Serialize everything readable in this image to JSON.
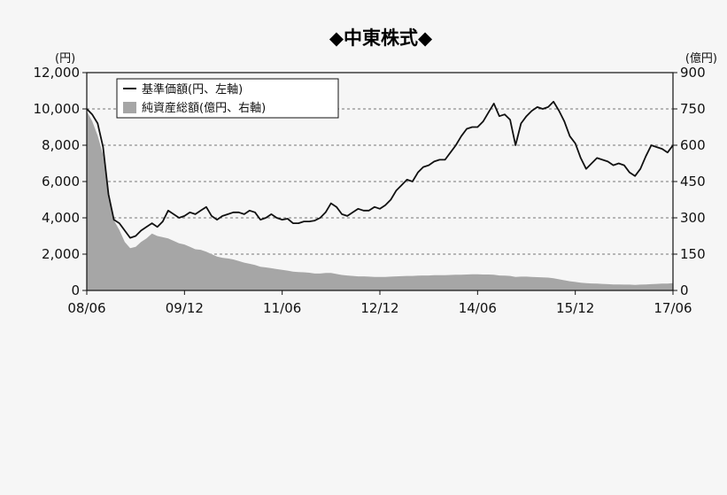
{
  "chart_data": {
    "type": "line",
    "title": "◆中東株式◆",
    "left_unit": "(円)",
    "right_unit": "(億円)",
    "x_ticks": [
      "08/06",
      "09/12",
      "11/06",
      "12/12",
      "14/06",
      "15/12",
      "17/06"
    ],
    "y_left": {
      "min": 0,
      "max": 12000,
      "ticks": [
        "0",
        "2,000",
        "4,000",
        "6,000",
        "8,000",
        "10,000",
        "12,000"
      ]
    },
    "y_right": {
      "min": 0,
      "max": 900,
      "ticks": [
        "0",
        "150",
        "300",
        "450",
        "600",
        "750",
        "900"
      ]
    },
    "grid": "horizontal-dashed",
    "legend_position": "top-left",
    "series": [
      {
        "name": "基準価額(円、左軸)",
        "axis": "left",
        "style": "line",
        "color": "#111111",
        "points": [
          [
            "2008-06",
            10000
          ],
          [
            "2008-07",
            9700
          ],
          [
            "2008-08",
            9200
          ],
          [
            "2008-09",
            7900
          ],
          [
            "2008-10",
            5300
          ],
          [
            "2008-11",
            3900
          ],
          [
            "2008-12",
            3700
          ],
          [
            "2009-01",
            3300
          ],
          [
            "2009-02",
            2900
          ],
          [
            "2009-03",
            3000
          ],
          [
            "2009-04",
            3300
          ],
          [
            "2009-05",
            3500
          ],
          [
            "2009-06",
            3700
          ],
          [
            "2009-07",
            3500
          ],
          [
            "2009-08",
            3800
          ],
          [
            "2009-09",
            4400
          ],
          [
            "2009-10",
            4200
          ],
          [
            "2009-11",
            4000
          ],
          [
            "2009-12",
            4100
          ],
          [
            "2010-01",
            4300
          ],
          [
            "2010-02",
            4200
          ],
          [
            "2010-03",
            4400
          ],
          [
            "2010-04",
            4600
          ],
          [
            "2010-05",
            4100
          ],
          [
            "2010-06",
            3900
          ],
          [
            "2010-07",
            4100
          ],
          [
            "2010-08",
            4200
          ],
          [
            "2010-09",
            4300
          ],
          [
            "2010-10",
            4300
          ],
          [
            "2010-11",
            4200
          ],
          [
            "2010-12",
            4400
          ],
          [
            "2011-01",
            4300
          ],
          [
            "2011-02",
            3900
          ],
          [
            "2011-03",
            4000
          ],
          [
            "2011-04",
            4200
          ],
          [
            "2011-05",
            4000
          ],
          [
            "2011-06",
            3900
          ],
          [
            "2011-07",
            3950
          ],
          [
            "2011-08",
            3700
          ],
          [
            "2011-09",
            3700
          ],
          [
            "2011-10",
            3800
          ],
          [
            "2011-11",
            3800
          ],
          [
            "2011-12",
            3850
          ],
          [
            "2012-01",
            4000
          ],
          [
            "2012-02",
            4300
          ],
          [
            "2012-03",
            4800
          ],
          [
            "2012-04",
            4600
          ],
          [
            "2012-05",
            4200
          ],
          [
            "2012-06",
            4100
          ],
          [
            "2012-07",
            4300
          ],
          [
            "2012-08",
            4500
          ],
          [
            "2012-09",
            4400
          ],
          [
            "2012-10",
            4400
          ],
          [
            "2012-11",
            4600
          ],
          [
            "2012-12",
            4500
          ],
          [
            "2013-01",
            4700
          ],
          [
            "2013-02",
            5000
          ],
          [
            "2013-03",
            5500
          ],
          [
            "2013-04",
            5800
          ],
          [
            "2013-05",
            6100
          ],
          [
            "2013-06",
            6000
          ],
          [
            "2013-07",
            6500
          ],
          [
            "2013-08",
            6800
          ],
          [
            "2013-09",
            6900
          ],
          [
            "2013-10",
            7100
          ],
          [
            "2013-11",
            7200
          ],
          [
            "2013-12",
            7200
          ],
          [
            "2014-01",
            7600
          ],
          [
            "2014-02",
            8000
          ],
          [
            "2014-03",
            8500
          ],
          [
            "2014-04",
            8900
          ],
          [
            "2014-05",
            9000
          ],
          [
            "2014-06",
            9000
          ],
          [
            "2014-07",
            9300
          ],
          [
            "2014-08",
            9800
          ],
          [
            "2014-09",
            10300
          ],
          [
            "2014-10",
            9600
          ],
          [
            "2014-11",
            9700
          ],
          [
            "2014-12",
            9400
          ],
          [
            "2015-01",
            8000
          ],
          [
            "2015-02",
            9200
          ],
          [
            "2015-03",
            9600
          ],
          [
            "2015-04",
            9900
          ],
          [
            "2015-05",
            10100
          ],
          [
            "2015-06",
            10000
          ],
          [
            "2015-07",
            10100
          ],
          [
            "2015-08",
            10400
          ],
          [
            "2015-09",
            9900
          ],
          [
            "2015-10",
            9300
          ],
          [
            "2015-11",
            8500
          ],
          [
            "2015-12",
            8100
          ],
          [
            "2016-01",
            7300
          ],
          [
            "2016-02",
            6700
          ],
          [
            "2016-03",
            7000
          ],
          [
            "2016-04",
            7300
          ],
          [
            "2016-05",
            7200
          ],
          [
            "2016-06",
            7100
          ],
          [
            "2016-07",
            6900
          ],
          [
            "2016-08",
            7000
          ],
          [
            "2016-09",
            6900
          ],
          [
            "2016-10",
            6500
          ],
          [
            "2016-11",
            6300
          ],
          [
            "2016-12",
            6700
          ],
          [
            "2017-01",
            7400
          ],
          [
            "2017-02",
            8000
          ],
          [
            "2017-03",
            7900
          ],
          [
            "2017-04",
            7800
          ],
          [
            "2017-05",
            7600
          ],
          [
            "2017-06",
            8000
          ]
        ]
      },
      {
        "name": "純資産総額(億円、右軸)",
        "axis": "right",
        "style": "area",
        "color": "#a6a6a6",
        "points": [
          [
            "2008-06",
            740
          ],
          [
            "2008-07",
            700
          ],
          [
            "2008-08",
            640
          ],
          [
            "2008-09",
            560
          ],
          [
            "2008-10",
            380
          ],
          [
            "2008-11",
            290
          ],
          [
            "2008-12",
            250
          ],
          [
            "2009-01",
            200
          ],
          [
            "2009-02",
            175
          ],
          [
            "2009-03",
            180
          ],
          [
            "2009-04",
            200
          ],
          [
            "2009-05",
            215
          ],
          [
            "2009-06",
            235
          ],
          [
            "2009-07",
            225
          ],
          [
            "2009-08",
            220
          ],
          [
            "2009-09",
            215
          ],
          [
            "2009-10",
            205
          ],
          [
            "2009-11",
            195
          ],
          [
            "2009-12",
            190
          ],
          [
            "2010-01",
            180
          ],
          [
            "2010-02",
            170
          ],
          [
            "2010-03",
            168
          ],
          [
            "2010-04",
            160
          ],
          [
            "2010-05",
            150
          ],
          [
            "2010-06",
            140
          ],
          [
            "2010-07",
            135
          ],
          [
            "2010-08",
            132
          ],
          [
            "2010-09",
            128
          ],
          [
            "2010-10",
            122
          ],
          [
            "2010-11",
            115
          ],
          [
            "2010-12",
            110
          ],
          [
            "2011-01",
            105
          ],
          [
            "2011-02",
            98
          ],
          [
            "2011-03",
            95
          ],
          [
            "2011-04",
            92
          ],
          [
            "2011-05",
            88
          ],
          [
            "2011-06",
            85
          ],
          [
            "2011-07",
            82
          ],
          [
            "2011-08",
            78
          ],
          [
            "2011-09",
            76
          ],
          [
            "2011-10",
            75
          ],
          [
            "2011-11",
            73
          ],
          [
            "2011-12",
            70
          ],
          [
            "2012-01",
            70
          ],
          [
            "2012-02",
            72
          ],
          [
            "2012-03",
            72
          ],
          [
            "2012-04",
            68
          ],
          [
            "2012-05",
            64
          ],
          [
            "2012-06",
            62
          ],
          [
            "2012-07",
            60
          ],
          [
            "2012-08",
            58
          ],
          [
            "2012-09",
            58
          ],
          [
            "2012-10",
            57
          ],
          [
            "2012-11",
            56
          ],
          [
            "2012-12",
            56
          ],
          [
            "2013-01",
            56
          ],
          [
            "2013-02",
            57
          ],
          [
            "2013-03",
            58
          ],
          [
            "2013-04",
            59
          ],
          [
            "2013-05",
            60
          ],
          [
            "2013-06",
            60
          ],
          [
            "2013-07",
            61
          ],
          [
            "2013-08",
            62
          ],
          [
            "2013-09",
            62
          ],
          [
            "2013-10",
            63
          ],
          [
            "2013-11",
            63
          ],
          [
            "2013-12",
            63
          ],
          [
            "2014-01",
            64
          ],
          [
            "2014-02",
            65
          ],
          [
            "2014-03",
            65
          ],
          [
            "2014-04",
            66
          ],
          [
            "2014-05",
            67
          ],
          [
            "2014-06",
            67
          ],
          [
            "2014-07",
            66
          ],
          [
            "2014-08",
            66
          ],
          [
            "2014-09",
            65
          ],
          [
            "2014-10",
            62
          ],
          [
            "2014-11",
            61
          ],
          [
            "2014-12",
            60
          ],
          [
            "2015-01",
            56
          ],
          [
            "2015-02",
            57
          ],
          [
            "2015-03",
            57
          ],
          [
            "2015-04",
            56
          ],
          [
            "2015-05",
            55
          ],
          [
            "2015-06",
            54
          ],
          [
            "2015-07",
            53
          ],
          [
            "2015-08",
            50
          ],
          [
            "2015-09",
            46
          ],
          [
            "2015-10",
            42
          ],
          [
            "2015-11",
            38
          ],
          [
            "2015-12",
            35
          ],
          [
            "2016-01",
            32
          ],
          [
            "2016-02",
            30
          ],
          [
            "2016-03",
            29
          ],
          [
            "2016-04",
            28
          ],
          [
            "2016-05",
            27
          ],
          [
            "2016-06",
            26
          ],
          [
            "2016-07",
            25
          ],
          [
            "2016-08",
            25
          ],
          [
            "2016-09",
            24
          ],
          [
            "2016-10",
            24
          ],
          [
            "2016-11",
            23
          ],
          [
            "2016-12",
            24
          ],
          [
            "2017-01",
            25
          ],
          [
            "2017-02",
            26
          ],
          [
            "2017-03",
            27
          ],
          [
            "2017-04",
            28
          ],
          [
            "2017-05",
            28
          ],
          [
            "2017-06",
            30
          ]
        ]
      }
    ]
  }
}
